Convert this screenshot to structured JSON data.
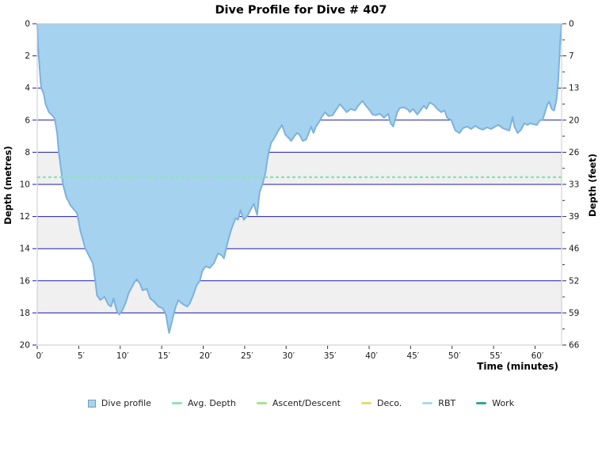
{
  "title": "Dive Profile for Dive # 407",
  "chart_data": {
    "type": "area",
    "title": "Dive Profile for Dive # 407",
    "x_axis": {
      "label": "Time (minutes)",
      "tick_minutes": [
        0,
        5,
        10,
        15,
        20,
        25,
        30,
        35,
        40,
        45,
        50,
        55,
        60
      ],
      "tick_labels": [
        "0′",
        "5′",
        "10′",
        "15′",
        "20′",
        "25′",
        "30′",
        "35′",
        "40′",
        "45′",
        "50′",
        "55′",
        "60′"
      ],
      "range_minutes": [
        0,
        63.2
      ]
    },
    "y_axis_left": {
      "label": "Depth (metres)",
      "tick_metres": [
        0,
        2,
        4,
        6,
        8,
        10,
        12,
        14,
        16,
        18,
        20
      ],
      "range": [
        0,
        20
      ]
    },
    "y_axis_right": {
      "label": "Depth (feet)",
      "tick_labels": [
        "0",
        "7",
        "13",
        "20",
        "26",
        "33",
        "39",
        "46",
        "52",
        "59",
        "66"
      ]
    },
    "avg_depth_m": 9.55,
    "gray_band_depths_m": [
      [
        8,
        10
      ],
      [
        12,
        14
      ],
      [
        16,
        18
      ]
    ],
    "grid": true,
    "legend_position": "bottom",
    "series": [
      {
        "name": "Dive profile",
        "x_minutes": [
          0,
          0.1,
          0.25,
          0.4,
          0.5,
          0.8,
          1.0,
          1.4,
          1.8,
          2.1,
          2.4,
          2.6,
          2.9,
          3.1,
          3.5,
          4.0,
          4.8,
          5.2,
          5.8,
          6.3,
          6.7,
          7.0,
          7.2,
          7.6,
          8.1,
          8.6,
          8.9,
          9.2,
          9.6,
          9.9,
          10.3,
          10.7,
          11.0,
          11.4,
          11.7,
          12.0,
          12.4,
          12.7,
          13.2,
          13.6,
          14.1,
          14.6,
          15.1,
          15.5,
          15.9,
          16.3,
          16.7,
          17.0,
          17.4,
          17.7,
          18.1,
          18.4,
          18.8,
          19.2,
          19.6,
          19.9,
          20.3,
          20.8,
          21.3,
          21.8,
          22.2,
          22.5,
          23.0,
          23.4,
          23.9,
          24.2,
          24.5,
          24.9,
          25.4,
          25.8,
          26.1,
          26.5,
          26.8,
          27.2,
          27.5,
          27.7,
          27.9,
          28.2,
          28.6,
          29.0,
          29.5,
          29.9,
          30.3,
          30.6,
          31.0,
          31.3,
          31.6,
          32.0,
          32.4,
          32.8,
          33.0,
          33.3,
          33.6,
          34.0,
          34.3,
          34.7,
          35.1,
          35.6,
          36.1,
          36.5,
          36.8,
          37.3,
          37.8,
          38.3,
          38.7,
          39.2,
          39.6,
          40.1,
          40.4,
          40.8,
          41.3,
          41.8,
          42.3,
          42.6,
          42.9,
          43.4,
          43.7,
          44.2,
          44.7,
          44.9,
          45.3,
          45.8,
          46.1,
          46.6,
          46.9,
          47.3,
          47.8,
          48.2,
          48.7,
          49.1,
          49.4,
          49.9,
          50.4,
          50.9,
          51.3,
          51.8,
          52.3,
          52.8,
          53.2,
          53.7,
          54.2,
          54.7,
          55.2,
          55.6,
          56.1,
          56.6,
          56.9,
          57.3,
          57.5,
          57.9,
          58.3,
          58.7,
          59.1,
          59.4,
          59.8,
          60.2,
          60.6,
          60.9,
          61.2,
          61.5,
          61.7,
          62.0,
          62.3,
          62.6,
          62.8,
          63.0,
          63.1,
          63.2
        ],
        "depth_m": [
          0,
          1.4,
          2.5,
          3.6,
          4.0,
          4.4,
          5.0,
          5.5,
          5.7,
          5.9,
          6.8,
          8.0,
          9.2,
          10.0,
          10.8,
          11.3,
          11.8,
          12.9,
          14.0,
          14.5,
          14.9,
          16.0,
          16.9,
          17.2,
          17.0,
          17.5,
          17.6,
          17.1,
          17.9,
          18.1,
          17.8,
          17.3,
          16.8,
          16.4,
          16.1,
          15.9,
          16.2,
          16.6,
          16.5,
          17.1,
          17.3,
          17.6,
          17.7,
          18.1,
          19.25,
          18.4,
          17.6,
          17.2,
          17.4,
          17.5,
          17.6,
          17.4,
          16.9,
          16.3,
          16.0,
          15.4,
          15.1,
          15.2,
          14.9,
          14.3,
          14.4,
          14.6,
          13.5,
          12.8,
          12.1,
          12.2,
          11.6,
          12.2,
          11.9,
          11.5,
          11.2,
          11.9,
          10.5,
          9.9,
          9.3,
          8.6,
          8.0,
          7.4,
          7.1,
          6.7,
          6.3,
          6.9,
          7.1,
          7.3,
          7.0,
          6.8,
          6.9,
          7.3,
          7.2,
          6.7,
          6.4,
          6.8,
          6.4,
          6.1,
          5.8,
          5.5,
          5.75,
          5.7,
          5.3,
          5.0,
          5.2,
          5.5,
          5.3,
          5.4,
          5.1,
          4.8,
          5.1,
          5.4,
          5.65,
          5.7,
          5.6,
          5.85,
          5.6,
          6.2,
          6.4,
          5.5,
          5.25,
          5.2,
          5.35,
          5.5,
          5.3,
          5.65,
          5.45,
          5.1,
          5.3,
          4.9,
          5.05,
          5.3,
          5.5,
          5.4,
          5.85,
          6.0,
          6.65,
          6.8,
          6.5,
          6.4,
          6.55,
          6.35,
          6.5,
          6.6,
          6.45,
          6.55,
          6.4,
          6.3,
          6.5,
          6.6,
          6.65,
          5.8,
          6.4,
          6.8,
          6.6,
          6.2,
          6.3,
          6.2,
          6.25,
          6.3,
          6.0,
          6.0,
          5.5,
          5.0,
          4.85,
          5.3,
          5.4,
          4.7,
          3.5,
          1.4,
          0.6,
          0
        ]
      }
    ]
  },
  "colors": {
    "profile_fill": "#a5d2ee",
    "profile_stroke": "#7cb2df",
    "gridline_blue": "#1a1ab3",
    "avg_depth_green": "#8fe3b5",
    "band_gray": "#f0f0f0",
    "plot_border": "#c8c8c8",
    "tick_text": "#1a1a1a",
    "axis_tick_dark": "#333333"
  },
  "legend": {
    "items": [
      {
        "label": "Dive profile",
        "swatch": "square",
        "color": "#a9d4ea",
        "border": "#7a9cb8"
      },
      {
        "label": "Avg. Depth",
        "swatch": "dash",
        "color": "#8fe3b5"
      },
      {
        "label": "Ascent/Descent",
        "swatch": "dash",
        "color": "#a6e491"
      },
      {
        "label": "Deco.",
        "swatch": "dash",
        "color": "#dde06e"
      },
      {
        "label": "RBT",
        "swatch": "dash",
        "color": "#a9d9f2"
      },
      {
        "label": "Work",
        "swatch": "dash",
        "color": "#2fa98c"
      }
    ]
  }
}
